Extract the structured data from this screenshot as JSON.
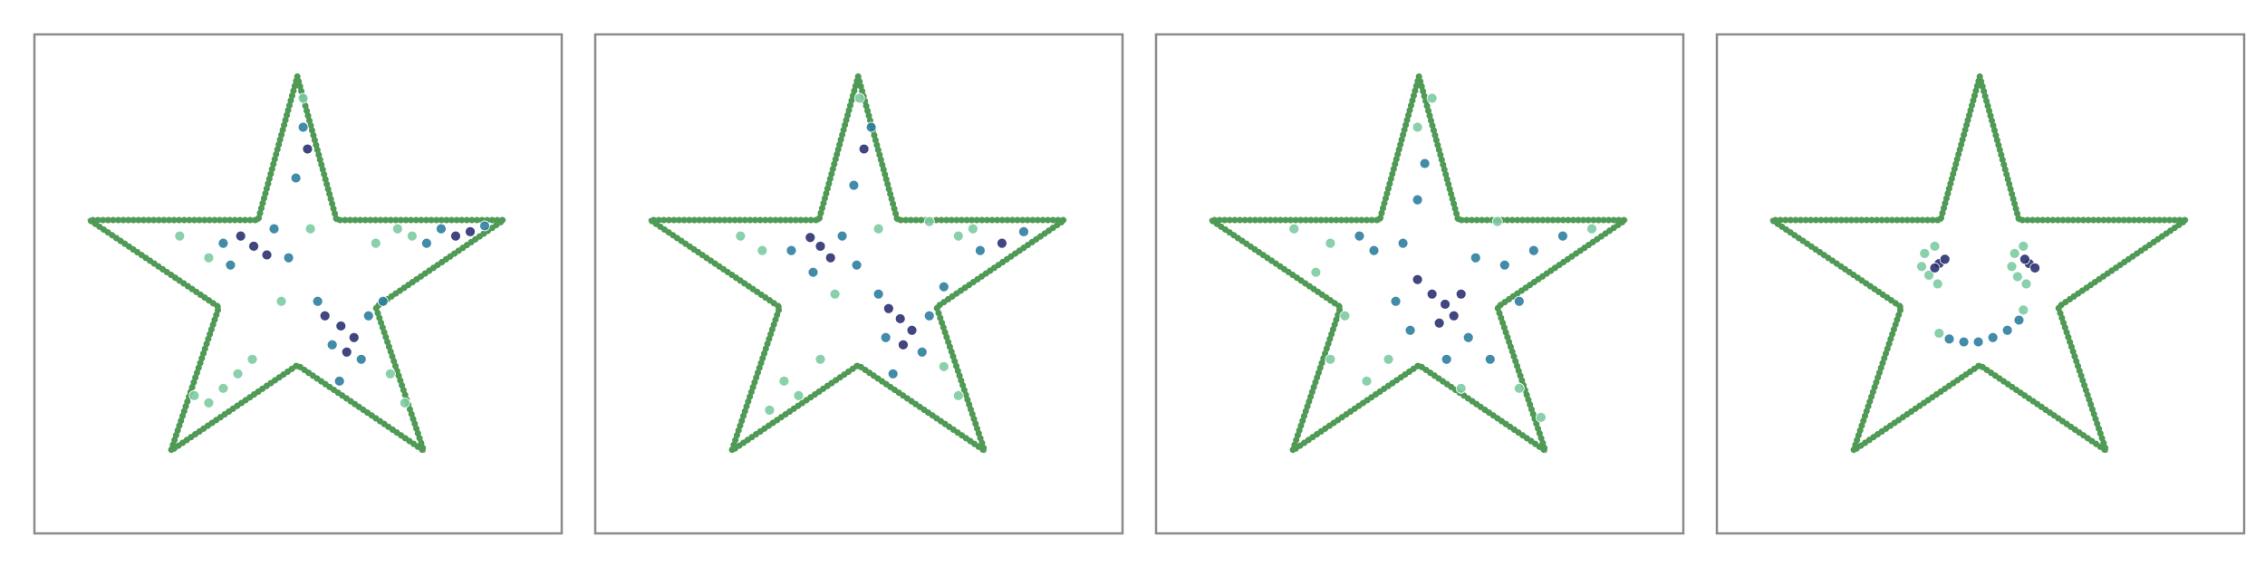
{
  "chart_data": [
    {
      "type": "scatter",
      "xlim": [
        0,
        363
      ],
      "ylim": [
        0,
        344
      ],
      "series": [
        {
          "style": "line",
          "color": "#4f9a55",
          "x": [
            181,
            208,
            323,
            235,
            268,
            181,
            94,
            127,
            38,
            154,
            181
          ],
          "y": [
            315,
            216,
            216,
            156,
            57,
            116,
            57,
            156,
            216,
            216,
            315
          ]
        },
        {
          "color": "#7ccba2",
          "x": [
            120,
            100,
            190,
            250,
            260,
            130,
            140,
            120,
            150,
            245,
            255,
            170,
            235,
            185,
            110
          ],
          "y": [
            190,
            205,
            210,
            210,
            205,
            100,
            110,
            90,
            120,
            110,
            90,
            160,
            200,
            300,
            95
          ]
        },
        {
          "color": "#2e7ea0",
          "x": [
            130,
            165,
            175,
            195,
            230,
            225,
            205,
            270,
            280,
            310,
            185,
            180,
            135,
            240,
            210
          ],
          "y": [
            200,
            210,
            190,
            160,
            150,
            120,
            130,
            200,
            210,
            212,
            280,
            245,
            185,
            160,
            105
          ]
        },
        {
          "color": "#2c3172",
          "x": [
            151,
            160,
            142,
            211,
            220,
            200,
            215,
            290,
            300,
            188
          ],
          "y": [
            198,
            192,
            205,
            143,
            135,
            150,
            125,
            205,
            208,
            265
          ]
        }
      ]
    },
    {
      "type": "scatter",
      "xlim": [
        0,
        363
      ],
      "ylim": [
        0,
        344
      ],
      "series": [
        {
          "style": "line",
          "color": "#4f9a55",
          "x": [
            181,
            208,
            323,
            235,
            268,
            181,
            94,
            127,
            38,
            154,
            181
          ],
          "y": [
            315,
            216,
            216,
            156,
            57,
            116,
            57,
            156,
            216,
            216,
            315
          ]
        },
        {
          "color": "#7ccba2",
          "x": [
            115,
            100,
            195,
            250,
            130,
            140,
            120,
            155,
            240,
            250,
            165,
            230,
            182,
            260
          ],
          "y": [
            195,
            205,
            210,
            205,
            105,
            95,
            85,
            120,
            115,
            95,
            165,
            215,
            300,
            210
          ]
        },
        {
          "color": "#2e7ea0",
          "x": [
            135,
            170,
            180,
            195,
            230,
            225,
            200,
            265,
            295,
            190,
            178,
            240,
            205,
            150
          ],
          "y": [
            195,
            205,
            185,
            165,
            150,
            125,
            135,
            195,
            208,
            280,
            240,
            170,
            110,
            180
          ]
        },
        {
          "color": "#2c3172",
          "x": [
            155,
            162,
            148,
            210,
            218,
            202,
            212,
            280,
            185
          ],
          "y": [
            198,
            190,
            204,
            148,
            140,
            155,
            130,
            200,
            265
          ]
        }
      ]
    },
    {
      "type": "scatter",
      "xlim": [
        0,
        363
      ],
      "ylim": [
        0,
        344
      ],
      "series": [
        {
          "style": "line",
          "color": "#4f9a55",
          "x": [
            181,
            208,
            323,
            235,
            268,
            181,
            94,
            127,
            38,
            154,
            181
          ],
          "y": [
            315,
            216,
            216,
            156,
            57,
            116,
            57,
            156,
            216,
            216,
            315
          ]
        },
        {
          "color": "#7ccba2",
          "x": [
            120,
            95,
            300,
            130,
            120,
            145,
            250,
            265,
            180,
            190,
            110,
            235,
            160,
            210
          ],
          "y": [
            200,
            210,
            210,
            150,
            120,
            105,
            100,
            80,
            280,
            300,
            180,
            215,
            120,
            100
          ]
        },
        {
          "color": "#2e7ea0",
          "x": [
            170,
            150,
            220,
            240,
            260,
            180,
            185,
            215,
            230,
            165,
            140,
            280,
            200,
            175,
            250
          ],
          "y": [
            200,
            195,
            190,
            185,
            195,
            230,
            255,
            135,
            120,
            160,
            205,
            205,
            120,
            140,
            160
          ]
        },
        {
          "color": "#2c3172",
          "x": [
            199,
            205,
            190,
            210,
            180,
            195
          ],
          "y": [
            158,
            150,
            165,
            165,
            175,
            145
          ]
        }
      ]
    },
    {
      "type": "scatter",
      "xlim": [
        0,
        363
      ],
      "ylim": [
        0,
        344
      ],
      "series": [
        {
          "style": "line",
          "color": "#4f9a55",
          "x": [
            181,
            208,
            323,
            235,
            268,
            181,
            94,
            127,
            38,
            154,
            181
          ],
          "y": [
            315,
            216,
            216,
            156,
            57,
            116,
            57,
            156,
            216,
            216,
            315
          ]
        },
        {
          "color": "#7ccba2",
          "x": [
            141,
            143,
            150,
            146,
            152,
            203,
            205,
            211,
            207,
            213,
            153,
            211
          ],
          "y": [
            184,
            193,
            198,
            178,
            172,
            184,
            193,
            198,
            177,
            172,
            138,
            154
          ]
        },
        {
          "color": "#2e7ea0",
          "x": [
            160,
            170,
            180,
            190,
            200,
            208
          ],
          "y": [
            134,
            132,
            132,
            135,
            140,
            147
          ]
        },
        {
          "color": "#2c3172",
          "x": [
            153,
            157,
            150,
            215,
            219,
            212
          ],
          "y": [
            186,
            189,
            183,
            186,
            183,
            189
          ]
        }
      ]
    }
  ]
}
